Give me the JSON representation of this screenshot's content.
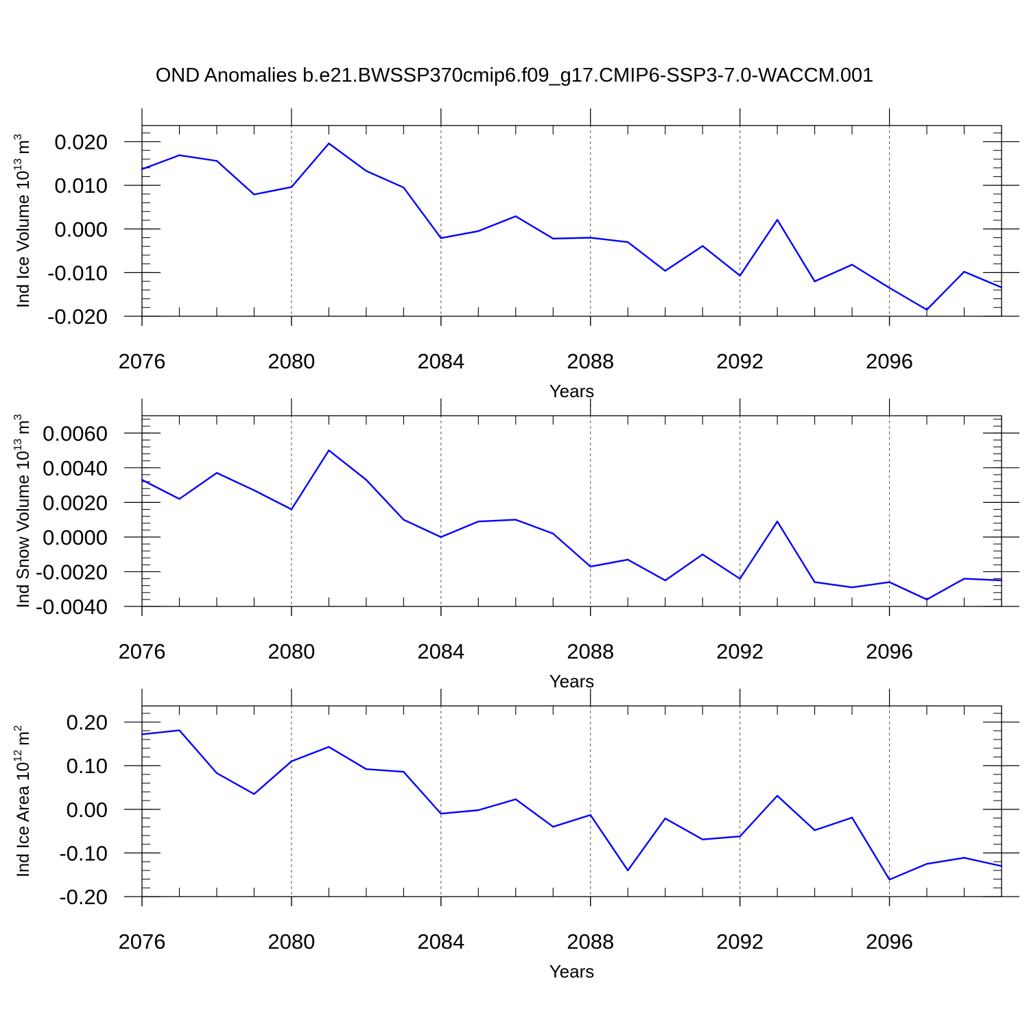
{
  "title": "OND Anomalies b.e21.BWSSP370cmip6.f09_g17.CMIP6-SSP3-7.0-WACCM.001",
  "colors": {
    "line": "#0000ff",
    "axis": "#000000",
    "grid": "#555555"
  },
  "chart_data": [
    {
      "type": "line",
      "name": "ind-ice-volume",
      "ylabel_main": "Ind Ice Volume 10",
      "ylabel_exp": "13",
      "ylabel_unit": "m",
      "ylabel_unit_exp": "3",
      "xlabel": "Years",
      "xlim": [
        2076,
        2099
      ],
      "ylim": [
        -0.02,
        0.0237
      ],
      "yticks": [
        -0.02,
        -0.01,
        0.0,
        0.01,
        0.02
      ],
      "ytick_labels": [
        "-0.020",
        "-0.010",
        "0.000",
        "0.010",
        "0.020"
      ],
      "yminor": 0.002,
      "xticks": [
        2076,
        2080,
        2084,
        2088,
        2092,
        2096
      ],
      "xtick_labels": [
        "2076",
        "2080",
        "2084",
        "2088",
        "2092",
        "2096"
      ],
      "x": [
        2076,
        2077,
        2078,
        2079,
        2080,
        2081,
        2082,
        2083,
        2084,
        2085,
        2086,
        2087,
        2088,
        2089,
        2090,
        2091,
        2092,
        2093,
        2094,
        2095,
        2096,
        2097,
        2098,
        2099
      ],
      "values": [
        0.0137,
        0.0169,
        0.0156,
        0.0079,
        0.0096,
        0.0196,
        0.0133,
        0.0095,
        -0.0021,
        -0.0005,
        0.0029,
        -0.0022,
        -0.002,
        -0.003,
        -0.0096,
        -0.0039,
        -0.0107,
        0.0021,
        -0.012,
        -0.0082,
        -0.0135,
        -0.0185,
        -0.0098,
        -0.0134
      ]
    },
    {
      "type": "line",
      "name": "ind-snow-volume",
      "ylabel_main": "Ind Snow Volume 10",
      "ylabel_exp": "13",
      "ylabel_unit": "m",
      "ylabel_unit_exp": "3",
      "xlabel": "Years",
      "xlim": [
        2076,
        2099
      ],
      "ylim": [
        -0.004,
        0.007
      ],
      "yticks": [
        -0.004,
        -0.002,
        0.0,
        0.002,
        0.004,
        0.006
      ],
      "ytick_labels": [
        "-0.0040",
        "-0.0020",
        "0.0000",
        "0.0020",
        "0.0040",
        "0.0060"
      ],
      "yminor": 0.0004,
      "xticks": [
        2076,
        2080,
        2084,
        2088,
        2092,
        2096
      ],
      "xtick_labels": [
        "2076",
        "2080",
        "2084",
        "2088",
        "2092",
        "2096"
      ],
      "x": [
        2076,
        2077,
        2078,
        2079,
        2080,
        2081,
        2082,
        2083,
        2084,
        2085,
        2086,
        2087,
        2088,
        2089,
        2090,
        2091,
        2092,
        2093,
        2094,
        2095,
        2096,
        2097,
        2098,
        2099
      ],
      "values": [
        0.0033,
        0.0022,
        0.0037,
        0.0027,
        0.0016,
        0.005,
        0.0033,
        0.001,
        0.0,
        0.0009,
        0.001,
        0.0002,
        -0.0017,
        -0.0013,
        -0.0025,
        -0.001,
        -0.0024,
        0.0009,
        -0.0026,
        -0.0029,
        -0.0026,
        -0.0036,
        -0.0024,
        -0.0025
      ]
    },
    {
      "type": "line",
      "name": "ind-ice-area",
      "ylabel_main": "Ind Ice Area 10",
      "ylabel_exp": "12",
      "ylabel_unit": "m",
      "ylabel_unit_exp": "2",
      "xlabel": "Years",
      "xlim": [
        2076,
        2099
      ],
      "ylim": [
        -0.2,
        0.237
      ],
      "yticks": [
        -0.2,
        -0.1,
        0.0,
        0.1,
        0.2
      ],
      "ytick_labels": [
        "-0.20",
        "-0.10",
        "0.00",
        "0.10",
        "0.20"
      ],
      "yminor": 0.02,
      "xticks": [
        2076,
        2080,
        2084,
        2088,
        2092,
        2096
      ],
      "xtick_labels": [
        "2076",
        "2080",
        "2084",
        "2088",
        "2092",
        "2096"
      ],
      "x": [
        2076,
        2077,
        2078,
        2079,
        2080,
        2081,
        2082,
        2083,
        2084,
        2085,
        2086,
        2087,
        2088,
        2089,
        2090,
        2091,
        2092,
        2093,
        2094,
        2095,
        2096,
        2097,
        2098,
        2099
      ],
      "values": [
        0.172,
        0.181,
        0.083,
        0.035,
        0.11,
        0.143,
        0.092,
        0.086,
        -0.01,
        -0.002,
        0.023,
        -0.04,
        -0.013,
        -0.14,
        -0.021,
        -0.069,
        -0.062,
        0.031,
        -0.048,
        -0.019,
        -0.161,
        -0.125,
        -0.111,
        -0.13
      ]
    }
  ]
}
